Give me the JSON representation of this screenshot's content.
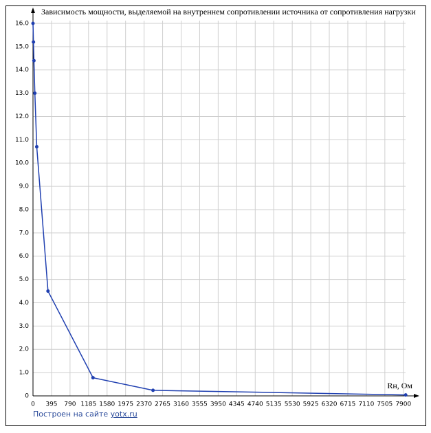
{
  "chart_data": {
    "type": "line",
    "title": "Зависимость мощности, выделяемой на внутреннем сопротивлении источника от сопротивления нагрузки",
    "x_label": "Rн, Ом",
    "x": [
      0,
      10,
      20,
      40,
      80,
      320,
      1280,
      2560,
      7950
    ],
    "series": [
      {
        "color": "#1f3fb0",
        "values": [
          16.0,
          15.2,
          14.4,
          13.0,
          10.7,
          4.5,
          0.78,
          0.24,
          0.04
        ]
      }
    ],
    "xlim": [
      0,
      8100
    ],
    "ylim": [
      0,
      16.5
    ],
    "xticks": [
      0,
      395,
      790,
      1185,
      1580,
      1975,
      2370,
      2765,
      3160,
      3555,
      3950,
      4345,
      4740,
      5135,
      5530,
      5925,
      6320,
      6715,
      7110,
      7505,
      7900
    ],
    "yticks": [
      0,
      {
        "value": 1,
        "label": "1.0"
      },
      {
        "value": 2,
        "label": "2.0"
      },
      {
        "value": 3,
        "label": "3.0"
      },
      {
        "value": 4,
        "label": "4.0"
      },
      {
        "value": 5,
        "label": "5.0"
      },
      {
        "value": 6,
        "label": "6.0"
      },
      {
        "value": 7,
        "label": "7.0"
      },
      {
        "value": 8,
        "label": "8.0"
      },
      {
        "value": 9,
        "label": "9.0"
      },
      {
        "value": 10,
        "label": "10.0"
      },
      {
        "value": 11,
        "label": "11.0"
      },
      {
        "value": 12,
        "label": "12.0"
      },
      {
        "value": 13,
        "label": "13.0"
      },
      {
        "value": 14,
        "label": "14.0"
      },
      {
        "value": 15,
        "label": "15.0"
      },
      {
        "value": 16,
        "label": "16.0"
      }
    ],
    "grid": true
  },
  "footer": {
    "text": "Построен на сайте",
    "link": "yotx.ru"
  }
}
